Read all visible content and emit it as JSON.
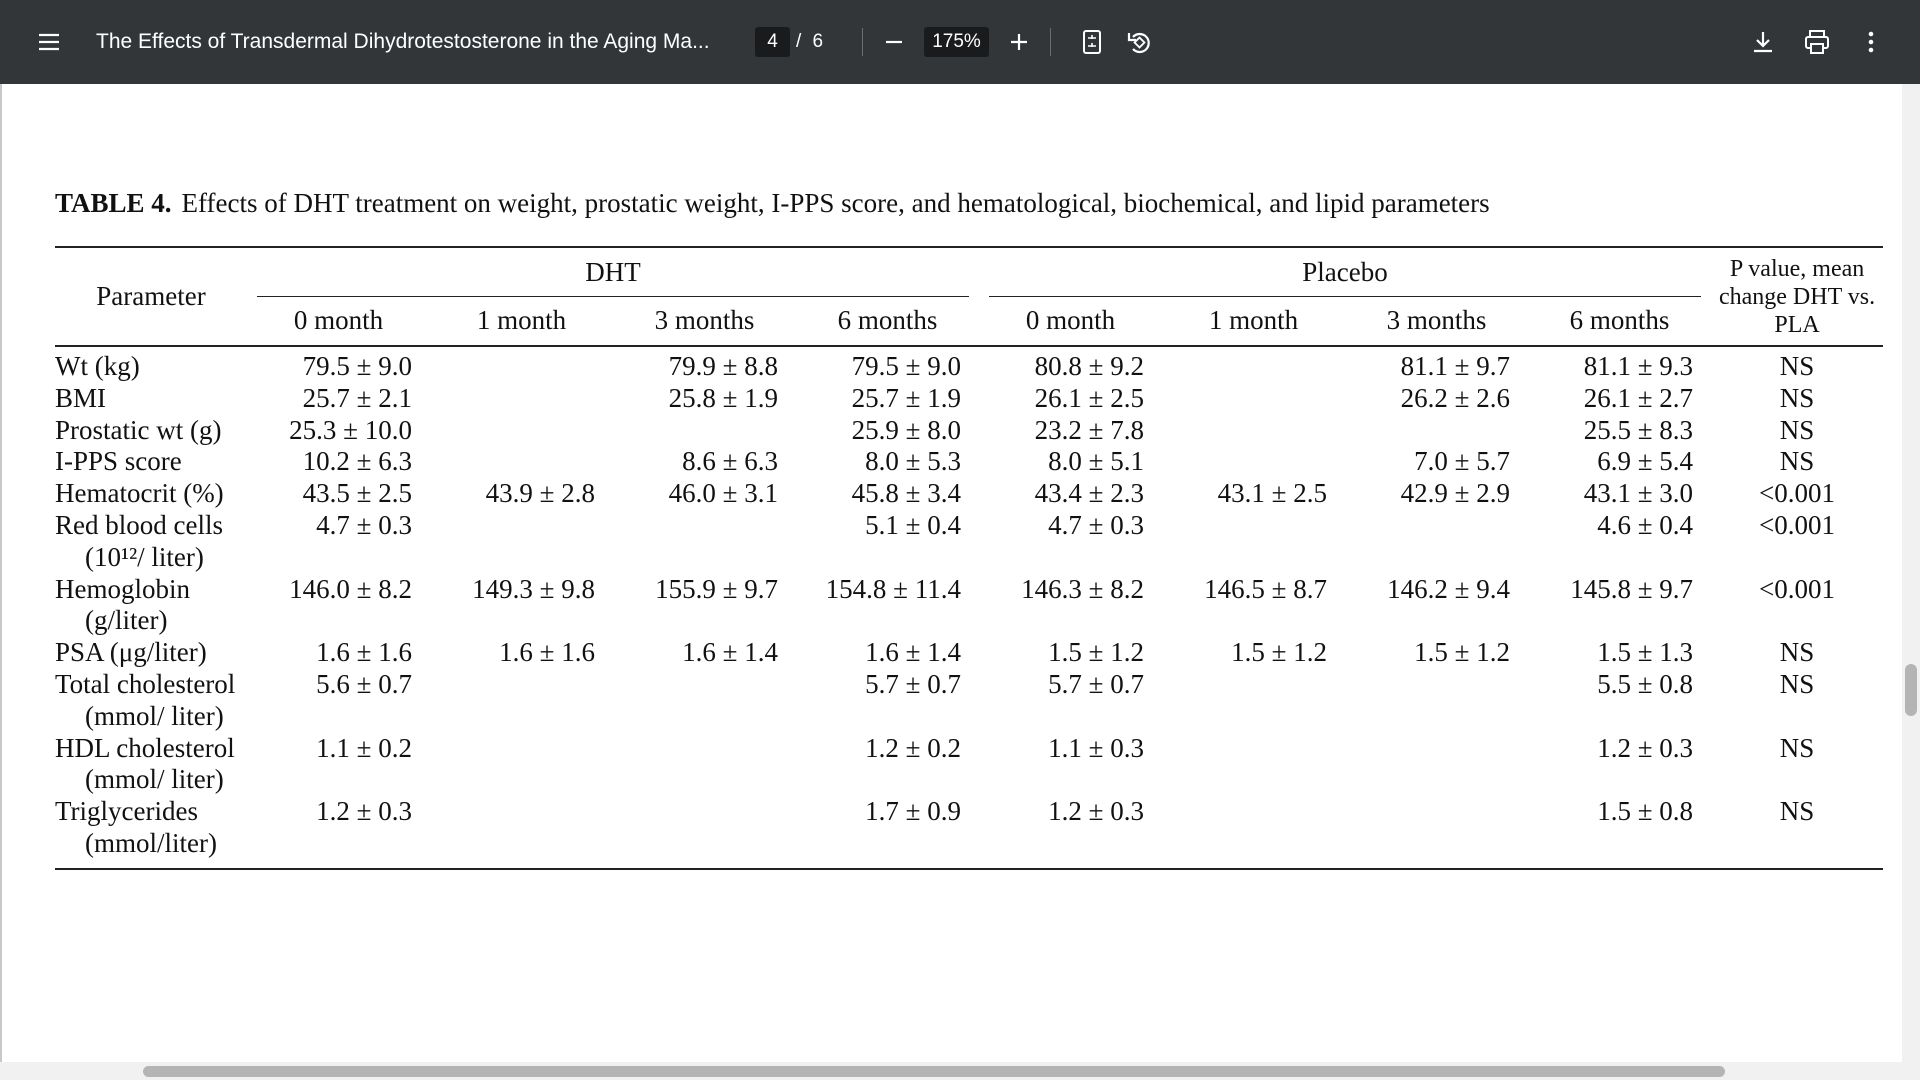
{
  "toolbar": {
    "title": "The Effects of Transdermal Dihydrotestosterone in the Aging Ma...",
    "page_current": "4",
    "page_of": "/ 6",
    "zoom": "175%"
  },
  "table": {
    "label": "TABLE 4.",
    "caption": "Effects of DHT treatment on weight, prostatic weight, I-PPS score, and hematological, biochemical, and lipid parameters",
    "header": {
      "parameter": "Parameter",
      "groups": [
        "DHT",
        "Placebo"
      ],
      "p_value": "P value, mean change DHT vs. PLA",
      "timepoints": [
        "0 month",
        "1 month",
        "3 months",
        "6 months",
        "0 month",
        "1 month",
        "3 months",
        "6 months"
      ]
    },
    "rows": [
      [
        "Wt (kg)",
        "79.5 ± 9.0",
        null,
        "79.9 ± 8.8",
        "79.5 ± 9.0",
        "80.8 ± 9.2",
        null,
        "81.1 ± 9.7",
        "81.1 ± 9.3",
        "NS"
      ],
      [
        "BMI",
        "25.7 ± 2.1",
        null,
        "25.8 ± 1.9",
        "25.7 ± 1.9",
        "26.1 ± 2.5",
        null,
        "26.2 ± 2.6",
        "26.1 ± 2.7",
        "NS"
      ],
      [
        "Prostatic wt (g)",
        "25.3 ± 10.0",
        null,
        null,
        "25.9 ± 8.0",
        "23.2 ± 7.8",
        null,
        null,
        "25.5 ± 8.3",
        "NS"
      ],
      [
        "I-PPS score",
        "10.2 ± 6.3",
        null,
        "8.6 ± 6.3",
        "8.0 ± 5.3",
        "8.0 ± 5.1",
        null,
        "7.0 ± 5.7",
        "6.9 ± 5.4",
        "NS"
      ],
      [
        "Hematocrit (%)",
        "43.5 ± 2.5",
        "43.9 ± 2.8",
        "46.0 ± 3.1",
        "45.8 ± 3.4",
        "43.4 ± 2.3",
        "43.1 ± 2.5",
        "42.9 ± 2.9",
        "43.1 ± 3.0",
        "<0.001"
      ],
      [
        "Red blood cells (10¹²/ liter)",
        "4.7 ± 0.3",
        null,
        null,
        "5.1 ± 0.4",
        "4.7 ± 0.3",
        null,
        null,
        "4.6 ± 0.4",
        "<0.001"
      ],
      [
        "Hemoglobin (g/liter)",
        "146.0 ± 8.2",
        "149.3 ± 9.8",
        "155.9 ± 9.7",
        "154.8 ± 11.4",
        "146.3 ± 8.2",
        "146.5 ± 8.7",
        "146.2 ± 9.4",
        "145.8 ± 9.7",
        "<0.001"
      ],
      [
        "PSA (μg/liter)",
        "1.6 ± 1.6",
        "1.6 ± 1.6",
        "1.6 ± 1.4",
        "1.6 ± 1.4",
        "1.5 ± 1.2",
        "1.5 ± 1.2",
        "1.5 ± 1.2",
        "1.5 ± 1.3",
        "NS"
      ],
      [
        "Total cholesterol (mmol/ liter)",
        "5.6 ± 0.7",
        null,
        null,
        "5.7 ± 0.7",
        "5.7 ± 0.7",
        null,
        null,
        "5.5 ± 0.8",
        "NS"
      ],
      [
        "HDL cholesterol (mmol/ liter)",
        "1.1 ± 0.2",
        null,
        null,
        "1.2 ± 0.2",
        "1.1 ± 0.3",
        null,
        null,
        "1.2 ± 0.3",
        "NS"
      ],
      [
        "Triglycerides (mmol/liter)",
        "1.2 ± 0.3",
        null,
        null,
        "1.7 ± 0.9",
        "1.2 ± 0.3",
        null,
        null,
        "1.5 ± 0.8",
        "NS"
      ]
    ]
  }
}
